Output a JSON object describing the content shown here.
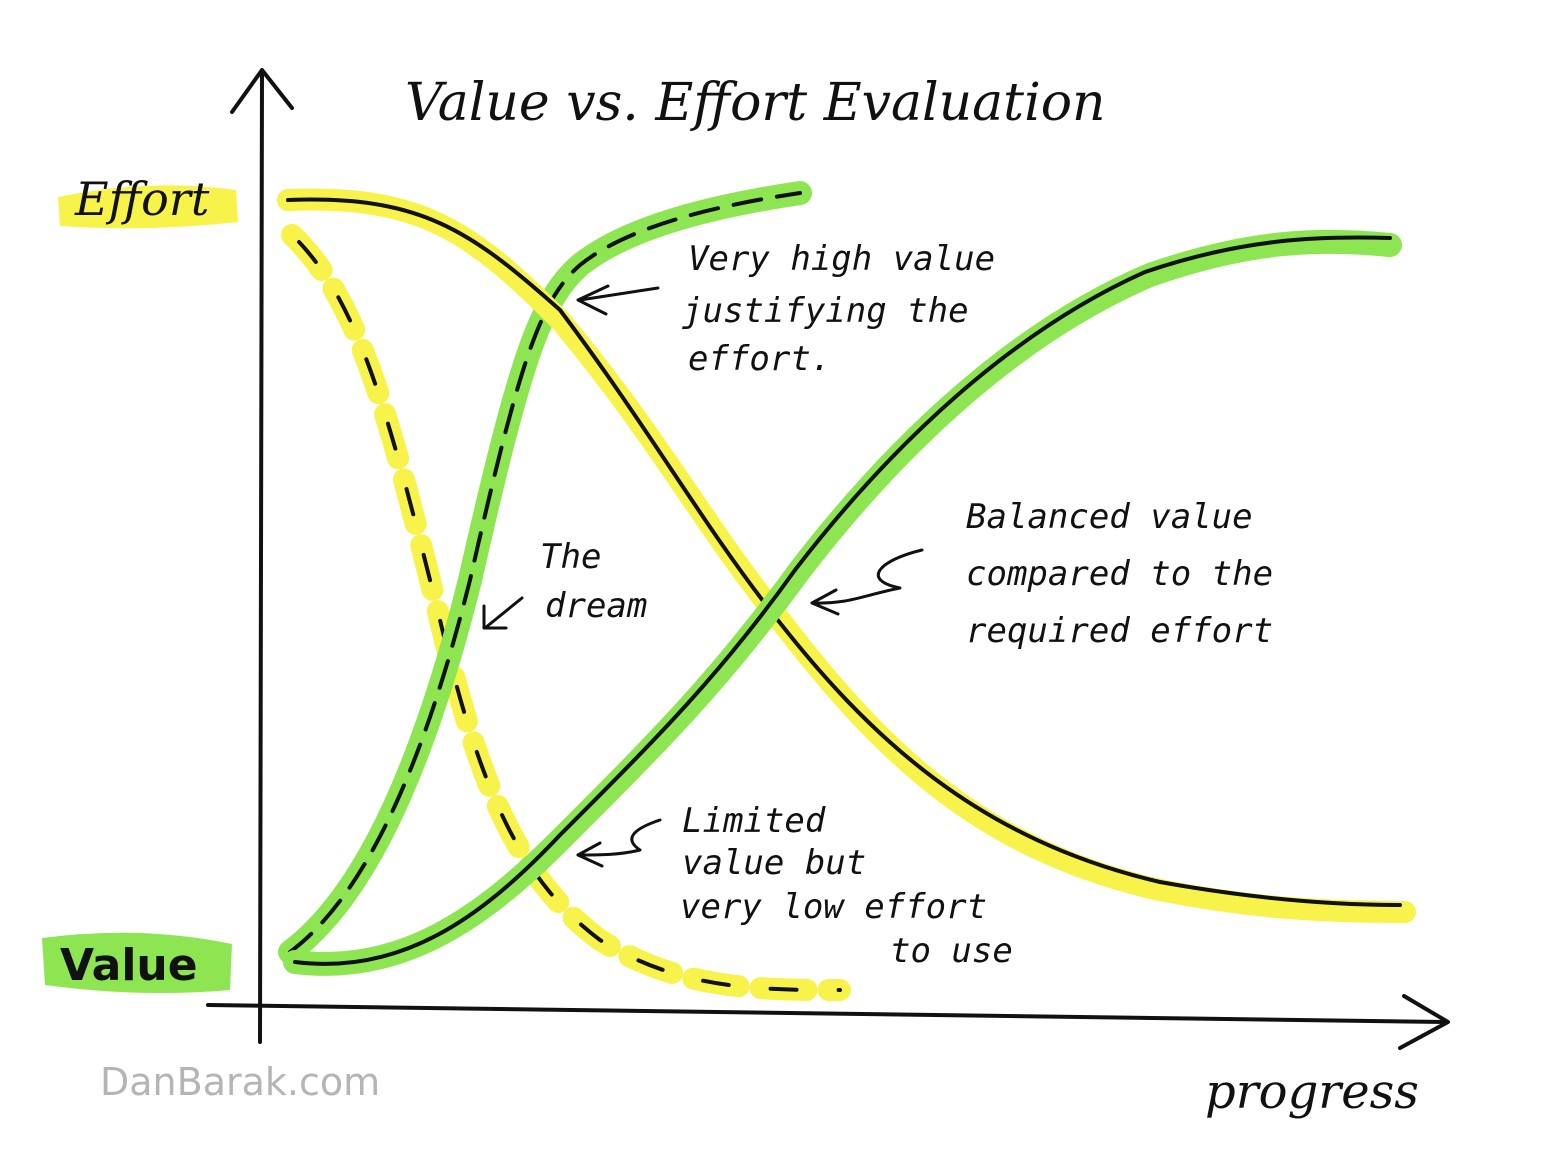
{
  "title": "Value vs. Effort  Evaluation",
  "axis": {
    "y_top_label": "Effort",
    "y_bottom_label": "Value",
    "x_label": "progress"
  },
  "annotations": {
    "high_value": [
      "Very high value",
      "justifying the",
      "effort."
    ],
    "dream": [
      "The",
      "dream"
    ],
    "balanced": [
      "Balanced value",
      "compared to the",
      "required effort"
    ],
    "limited": [
      "Limited",
      "value but",
      "very low effort",
      "to use"
    ]
  },
  "footer": "DanBarak.com",
  "colors": {
    "yellow": "#f7f34a",
    "green": "#8ee552",
    "ink": "#111111",
    "footer": "#b5b5b5"
  }
}
